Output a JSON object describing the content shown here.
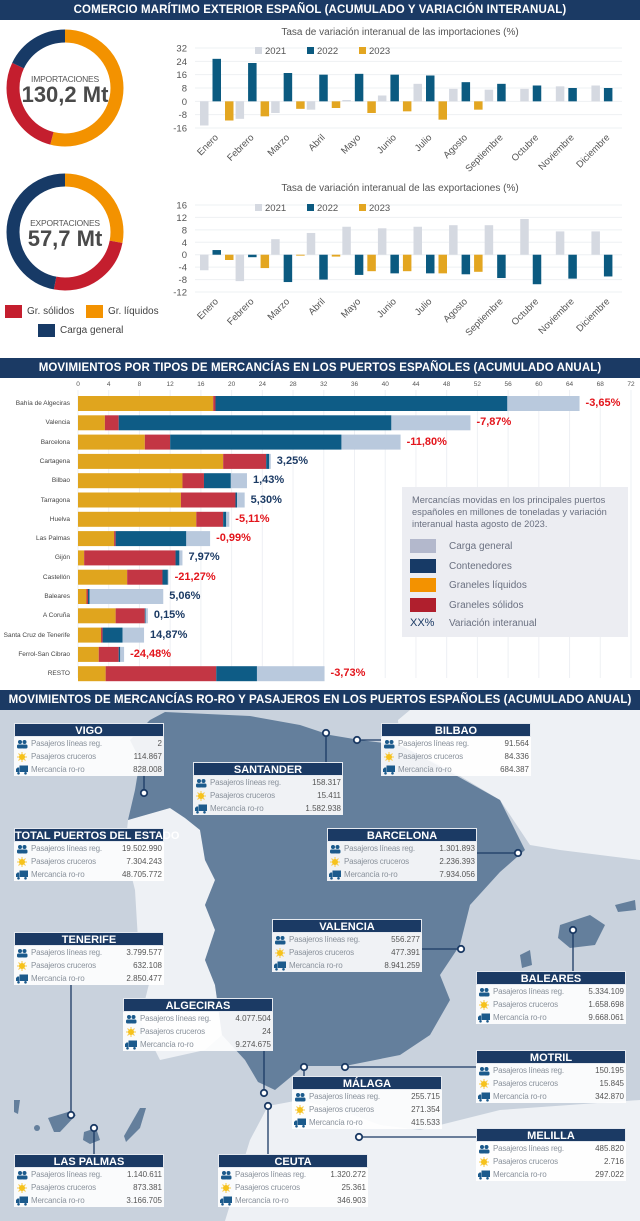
{
  "section1": {
    "title": "COMERCIO MARÍTIMO EXTERIOR ESPAÑOL (ACUMULADO Y VARIACIÓN INTERANUAL)",
    "imports": {
      "label": "IMPORTACIONES",
      "value": "130,2 Mt",
      "shares_pct": {
        "liquidos": 54,
        "solidos": 28,
        "general": 18
      }
    },
    "exports": {
      "label": "EXPORTACIONES",
      "value": "57,7 Mt",
      "shares_pct": {
        "liquidos": 28,
        "solidos": 25,
        "general": 47
      }
    },
    "legend": {
      "solidos": "Gr. sólidos",
      "liquidos": "Gr. líquidos",
      "general": "Carga general"
    },
    "colors": {
      "solidos": "#c41e2e",
      "liquidos": "#f39200",
      "general": "#173a66"
    }
  },
  "chart_data": [
    {
      "type": "bar",
      "title": "Tasa de variación interanual de las importaciones (%)",
      "categories": [
        "Enero",
        "Febrero",
        "Marzo",
        "Abril",
        "Mayo",
        "Junio",
        "Julio",
        "Agosto",
        "Septiembre",
        "Octubre",
        "Noviembre",
        "Diciembre"
      ],
      "yticks": [
        32,
        24,
        16,
        8,
        0,
        -8,
        -16
      ],
      "ylim": [
        -16,
        32
      ],
      "legend_position": "top-left",
      "series": [
        {
          "name": "2021",
          "color": "#d5d9e1",
          "values": [
            -14.5,
            -10.5,
            -7,
            -5,
            0.8,
            3.5,
            10.5,
            7.5,
            7,
            7.5,
            9,
            9.5
          ]
        },
        {
          "name": "2022",
          "color": "#0b5a80",
          "values": [
            25.5,
            23,
            17,
            16,
            16.5,
            16,
            15.5,
            11.5,
            10.5,
            9.5,
            8,
            8
          ]
        },
        {
          "name": "2023",
          "color": "#e3a621",
          "values": [
            -11.5,
            -9,
            -4.5,
            -4,
            -7,
            -6,
            -11,
            -5,
            null,
            null,
            null,
            null
          ]
        }
      ]
    },
    {
      "type": "bar",
      "title": "Tasa de variación interanual de las exportaciones (%)",
      "categories": [
        "Enero",
        "Febrero",
        "Marzo",
        "Abril",
        "Mayo",
        "Junio",
        "Julio",
        "Agosto",
        "Septiembre",
        "Octubre",
        "Noviembre",
        "Diciembre"
      ],
      "yticks": [
        16,
        12,
        8,
        4,
        0,
        -4,
        -8,
        -12
      ],
      "ylim": [
        -12,
        16
      ],
      "legend_position": "top-left",
      "series": [
        {
          "name": "2021",
          "color": "#d5d9e1",
          "values": [
            -5,
            -8.5,
            5,
            7,
            9,
            8.5,
            9,
            9.5,
            9.5,
            11.5,
            7.5,
            7.5
          ]
        },
        {
          "name": "2022",
          "color": "#0b5a80",
          "values": [
            1.5,
            -0.8,
            -8.8,
            -8,
            -6.5,
            -6,
            -6,
            -6.3,
            -7.5,
            -9.5,
            -7.7,
            -7
          ]
        },
        {
          "name": "2023",
          "color": "#e3a621",
          "values": [
            -1.7,
            -4.3,
            -0.3,
            -0.6,
            -5.3,
            -5.3,
            -6,
            -5.5,
            null,
            null,
            null,
            null
          ]
        }
      ]
    },
    {
      "type": "bar",
      "orientation": "horizontal-stacked",
      "title": "MOVIMIENTOS POR TIPOS DE MERCANCÍAS EN LOS PUERTOS ESPAÑOLES (ACUMULADO ANUAL)",
      "xticks": [
        0,
        4,
        8,
        12,
        16,
        20,
        24,
        28,
        32,
        36,
        40,
        44,
        48,
        52,
        56,
        60,
        64,
        68,
        72
      ],
      "xlim": [
        0,
        72
      ],
      "grid": true,
      "categories": [
        "Bahía de Algeciras",
        "Valencia",
        "Barcelona",
        "Cartagena",
        "Bilbao",
        "Tarragona",
        "Huelva",
        "Las Palmas",
        "Gijón",
        "Castellón",
        "Baleares",
        "A Coruña",
        "Santa Cruz de Tenerife",
        "Ferrol-San Cibrao",
        "RESTO"
      ],
      "series": [
        {
          "name": "Graneles líquidos",
          "color": "#e0a51e",
          "values": [
            17.6,
            3.5,
            8.7,
            18.9,
            13.6,
            13.4,
            15.4,
            4.7,
            0.8,
            6.4,
            1.1,
            4.9,
            3.0,
            2.7,
            3.6
          ]
        },
        {
          "name": "Graneles sólidos",
          "color": "#c33644",
          "values": [
            0.3,
            1.8,
            3.3,
            5.6,
            2.8,
            7.1,
            3.5,
            0.2,
            11.9,
            4.6,
            0.2,
            3.8,
            0.2,
            2.6,
            14.4
          ]
        },
        {
          "name": "Contenedores",
          "color": "#0e5c86",
          "values": [
            38.0,
            35.5,
            22.3,
            0.4,
            3.5,
            0.2,
            0.4,
            9.2,
            0.5,
            0.7,
            0.2,
            0.1,
            2.6,
            0.2,
            5.3
          ]
        },
        {
          "name": "Carga general",
          "color": "#b9c9dd",
          "values": [
            9.4,
            10.3,
            7.7,
            0.2,
            2.1,
            1.0,
            0.4,
            3.1,
            0.4,
            0.1,
            9.6,
            0.3,
            2.8,
            0.5,
            8.8
          ]
        }
      ],
      "variation_labels": [
        "-3,65%",
        "-7,87%",
        "-11,80%",
        "3,25%",
        "1,43%",
        "5,30%",
        "-5,11%",
        "-0,99%",
        "7,97%",
        "-21,27%",
        "5,06%",
        "0,15%",
        "14,87%",
        "-24,48%",
        "-3,73%"
      ],
      "positive_color": "#1b3a64",
      "negative_color": "#e3141b",
      "legend": {
        "description": "Mercancías movidas en los principales puertos españoles en millones de toneladas y variación interanual hasta agosto de 2023.",
        "items": [
          {
            "label": "Carga general",
            "color": "#b3b8cc"
          },
          {
            "label": "Contenedores",
            "color": "#173a66"
          },
          {
            "label": "Graneles líquidos",
            "color": "#f39200"
          },
          {
            "label": "Graneles sólidos",
            "color": "#b01f2d"
          }
        ],
        "variation_symbol": "XX%",
        "variation_label": "Variación interanual"
      }
    }
  ],
  "section3": {
    "title": "MOVIMIENTOS DE MERCANCÍAS RO-RO Y PASAJEROS EN LOS PUERTOS ESPAÑOLES (ACUMULADO ANUAL)",
    "row_labels": {
      "regular": "Pasajeros líneas reg.",
      "cruise": "Pasajeros cruceros",
      "roro": "Mercancía ro-ro"
    },
    "ports": [
      {
        "id": "vigo",
        "name": "VIGO",
        "regular": "2",
        "cruise": "114.867",
        "roro": "828.008"
      },
      {
        "id": "santander",
        "name": "SANTANDER",
        "regular": "158.317",
        "cruise": "15.411",
        "roro": "1.582.938"
      },
      {
        "id": "bilbao",
        "name": "BILBAO",
        "regular": "91.564",
        "cruise": "84.336",
        "roro": "684.387"
      },
      {
        "id": "total",
        "name": "TOTAL PUERTOS DEL ESTADO",
        "regular": "19.502.990",
        "cruise": "7.304.243",
        "roro": "48.705.772"
      },
      {
        "id": "barcelona",
        "name": "BARCELONA",
        "regular": "1.301.893",
        "cruise": "2.236.393",
        "roro": "7.934.056"
      },
      {
        "id": "valencia",
        "name": "VALENCIA",
        "regular": "556.277",
        "cruise": "477.391",
        "roro": "8.941.259"
      },
      {
        "id": "tenerife",
        "name": "TENERIFE",
        "regular": "3.799.577",
        "cruise": "632.108",
        "roro": "2.850.477"
      },
      {
        "id": "baleares",
        "name": "BALEARES",
        "regular": "5.334.109",
        "cruise": "1.658.698",
        "roro": "9.668.061"
      },
      {
        "id": "algeciras",
        "name": "ALGECIRAS",
        "regular": "4.077.504",
        "cruise": "24",
        "roro": "9.274.675"
      },
      {
        "id": "motril",
        "name": "MOTRIL",
        "regular": "150.195",
        "cruise": "15.845",
        "roro": "342.870"
      },
      {
        "id": "malaga",
        "name": "MÁLAGA",
        "regular": "255.715",
        "cruise": "271.354",
        "roro": "415.533"
      },
      {
        "id": "melilla",
        "name": "MELILLA",
        "regular": "485.820",
        "cruise": "2.716",
        "roro": "297.022"
      },
      {
        "id": "laspalmas",
        "name": "LAS PALMAS",
        "regular": "1.140.611",
        "cruise": "873.381",
        "roro": "3.166.705"
      },
      {
        "id": "ceuta",
        "name": "CEUTA",
        "regular": "1.320.272",
        "cruise": "25.361",
        "roro": "346.903"
      }
    ]
  }
}
